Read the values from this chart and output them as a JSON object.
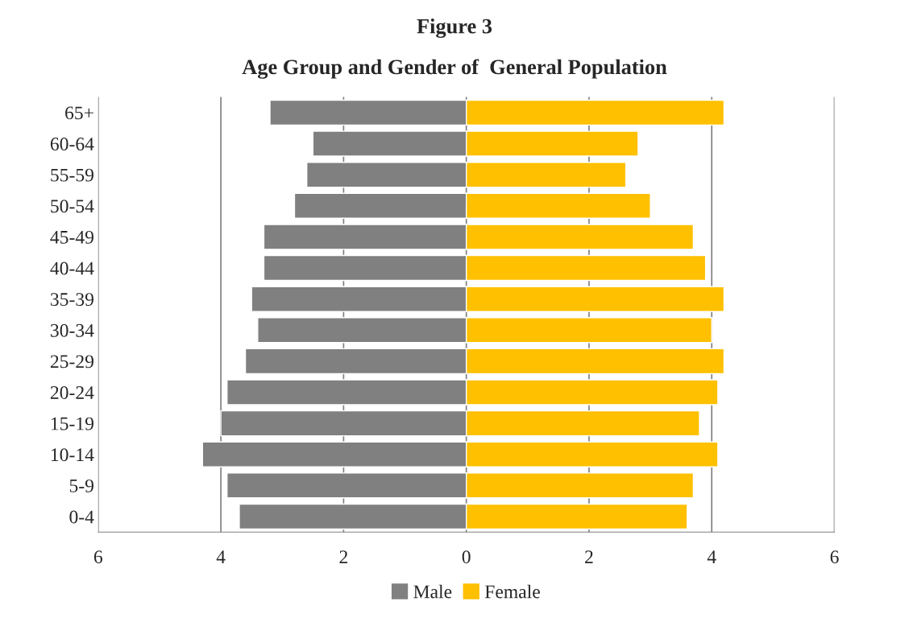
{
  "chart_data": {
    "type": "bar",
    "orientation": "horizontal",
    "stacked": true,
    "title": "Figure 3",
    "subtitle": "Age Group and Gender of  General Population",
    "categories": [
      "65+",
      "60-64",
      "55-59",
      "50-54",
      "45-49",
      "40-44",
      "35-39",
      "30-34",
      "25-29",
      "20-24",
      "15-19",
      "10-14",
      "5-9",
      "0-4"
    ],
    "series": [
      {
        "name": "Male",
        "color": "#808080",
        "values": [
          -3.2,
          -2.5,
          -2.6,
          -2.8,
          -3.3,
          -3.3,
          -3.5,
          -3.4,
          -3.6,
          -3.9,
          -4.0,
          -4.3,
          -3.9,
          -3.7
        ]
      },
      {
        "name": "Female",
        "color": "#ffc000",
        "values": [
          4.2,
          2.8,
          2.6,
          3.0,
          3.7,
          3.9,
          4.2,
          4.0,
          4.2,
          4.1,
          3.8,
          4.1,
          3.7,
          3.6
        ]
      }
    ],
    "xlim": [
      -6,
      6
    ],
    "xticks": [
      {
        "value": -6,
        "label": "6"
      },
      {
        "value": -4,
        "label": "4"
      },
      {
        "value": -2,
        "label": "2"
      },
      0,
      2,
      4,
      6
    ],
    "grid": "x",
    "legend": "bottom"
  }
}
